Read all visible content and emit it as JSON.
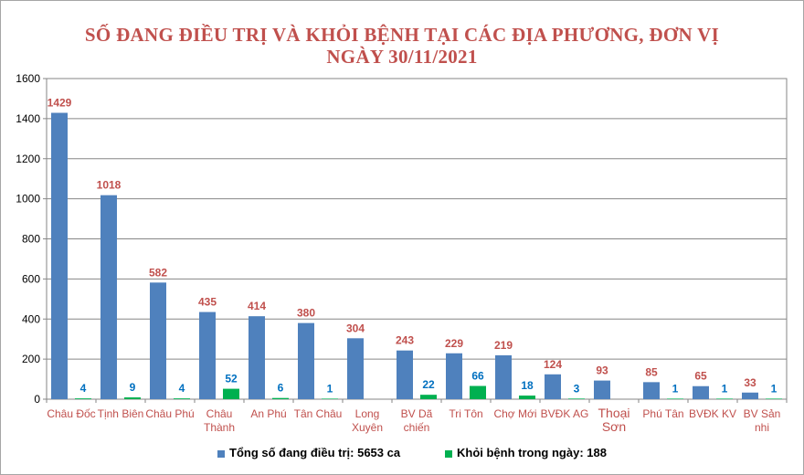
{
  "chart_data": {
    "type": "bar",
    "title": [
      "SỐ ĐANG ĐIỀU TRỊ VÀ KHỎI BỆNH TẠI CÁC ĐỊA PHƯƠNG, ĐƠN VỊ",
      "NGÀY 30/11/2021"
    ],
    "categories": [
      [
        "Châu Đốc"
      ],
      [
        "Tịnh Biên"
      ],
      [
        "Châu Phú"
      ],
      [
        "Châu",
        "Thành"
      ],
      [
        "An Phú"
      ],
      [
        "Tân Châu"
      ],
      [
        "Long",
        "Xuyên"
      ],
      [
        "BV Dã",
        "chiến"
      ],
      [
        "Tri Tôn"
      ],
      [
        "Chợ Mới"
      ],
      [
        "BVĐK AG"
      ],
      [
        "Thoại",
        "Sơn"
      ],
      [
        "Phú Tân"
      ],
      [
        "BVĐK KV"
      ],
      [
        "BV Sản",
        "nhi"
      ]
    ],
    "series": [
      {
        "name": "Tổng số  đang điều trị:  5653 ca",
        "color": "#4f81bd",
        "label_color": "#c0504d",
        "values": [
          1429,
          1018,
          582,
          435,
          414,
          380,
          304,
          243,
          229,
          219,
          124,
          93,
          85,
          65,
          33
        ]
      },
      {
        "name": "Khỏi bệnh trong ngày: 188",
        "color": "#00b050",
        "label_color": "#0070c0",
        "values": [
          4,
          9,
          4,
          52,
          6,
          1,
          null,
          22,
          66,
          18,
          3,
          null,
          1,
          1,
          1
        ]
      }
    ],
    "ylim": [
      0,
      1600
    ],
    "yticks": [
      0,
      200,
      400,
      600,
      800,
      1000,
      1200,
      1400,
      1600
    ],
    "grid": true,
    "legend_position": "bottom"
  }
}
